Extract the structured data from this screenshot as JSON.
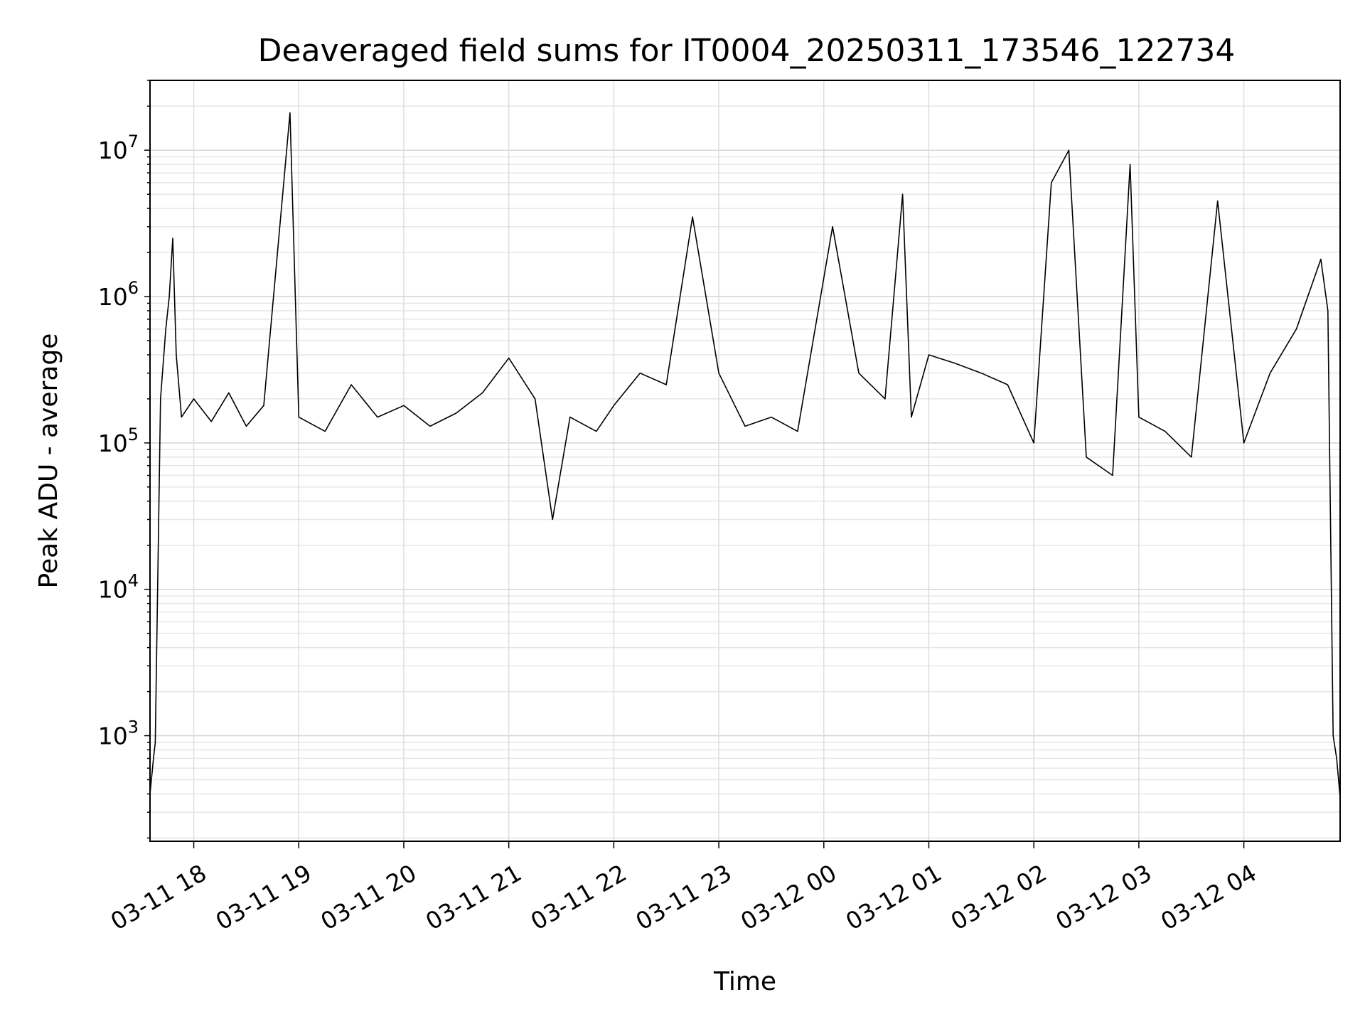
{
  "chart_data": {
    "type": "line",
    "title": "Deaveraged field sums for IT0004_20250311_173546_122734",
    "xlabel": "Time",
    "ylabel": "Peak ADU - average",
    "yscale": "log",
    "ylim": [
      190,
      30000000
    ],
    "y_ticks": [
      {
        "value": 1000,
        "base": "10",
        "exp": "3"
      },
      {
        "value": 10000,
        "base": "10",
        "exp": "4"
      },
      {
        "value": 100000,
        "base": "10",
        "exp": "5"
      },
      {
        "value": 1000000,
        "base": "10",
        "exp": "6"
      },
      {
        "value": 10000000,
        "base": "10",
        "exp": "7"
      }
    ],
    "xlim": [
      "2025-03-11 17:35",
      "2025-03-12 04:55"
    ],
    "x_ticks": [
      {
        "time": "2025-03-11 18:00",
        "label": "03-11 18"
      },
      {
        "time": "2025-03-11 19:00",
        "label": "03-11 19"
      },
      {
        "time": "2025-03-11 20:00",
        "label": "03-11 20"
      },
      {
        "time": "2025-03-11 21:00",
        "label": "03-11 21"
      },
      {
        "time": "2025-03-11 22:00",
        "label": "03-11 22"
      },
      {
        "time": "2025-03-11 23:00",
        "label": "03-11 23"
      },
      {
        "time": "2025-03-12 00:00",
        "label": "03-12 00"
      },
      {
        "time": "2025-03-12 01:00",
        "label": "03-12 01"
      },
      {
        "time": "2025-03-12 02:00",
        "label": "03-12 02"
      },
      {
        "time": "2025-03-12 03:00",
        "label": "03-12 03"
      },
      {
        "time": "2025-03-12 04:00",
        "label": "03-12 04"
      }
    ],
    "grid": true,
    "series": [
      {
        "color": "#000000",
        "points": [
          [
            "2025-03-11 17:35",
            400
          ],
          [
            "2025-03-11 17:37",
            700
          ],
          [
            "2025-03-11 17:38",
            900
          ],
          [
            "2025-03-11 17:41",
            200000
          ],
          [
            "2025-03-11 17:44",
            600000
          ],
          [
            "2025-03-11 17:46",
            1000000
          ],
          [
            "2025-03-11 17:48",
            2500000
          ],
          [
            "2025-03-11 17:50",
            400000
          ],
          [
            "2025-03-11 17:53",
            150000
          ],
          [
            "2025-03-11 18:00",
            200000
          ],
          [
            "2025-03-11 18:10",
            140000
          ],
          [
            "2025-03-11 18:20",
            220000
          ],
          [
            "2025-03-11 18:30",
            130000
          ],
          [
            "2025-03-11 18:40",
            180000
          ],
          [
            "2025-03-11 18:55",
            18000000
          ],
          [
            "2025-03-11 19:00",
            150000
          ],
          [
            "2025-03-11 19:15",
            120000
          ],
          [
            "2025-03-11 19:30",
            250000
          ],
          [
            "2025-03-11 19:45",
            150000
          ],
          [
            "2025-03-11 20:00",
            180000
          ],
          [
            "2025-03-11 20:15",
            130000
          ],
          [
            "2025-03-11 20:30",
            160000
          ],
          [
            "2025-03-11 20:45",
            220000
          ],
          [
            "2025-03-11 21:00",
            380000
          ],
          [
            "2025-03-11 21:15",
            200000
          ],
          [
            "2025-03-11 21:25",
            30000
          ],
          [
            "2025-03-11 21:35",
            150000
          ],
          [
            "2025-03-11 21:50",
            120000
          ],
          [
            "2025-03-11 22:00",
            180000
          ],
          [
            "2025-03-11 22:15",
            300000
          ],
          [
            "2025-03-11 22:30",
            250000
          ],
          [
            "2025-03-11 22:45",
            3500000
          ],
          [
            "2025-03-11 23:00",
            300000
          ],
          [
            "2025-03-11 23:15",
            130000
          ],
          [
            "2025-03-11 23:30",
            150000
          ],
          [
            "2025-03-11 23:45",
            120000
          ],
          [
            "2025-03-12 00:05",
            3000000
          ],
          [
            "2025-03-12 00:20",
            300000
          ],
          [
            "2025-03-12 00:35",
            200000
          ],
          [
            "2025-03-12 00:45",
            5000000
          ],
          [
            "2025-03-12 00:50",
            150000
          ],
          [
            "2025-03-12 01:00",
            400000
          ],
          [
            "2025-03-12 01:15",
            350000
          ],
          [
            "2025-03-12 01:30",
            300000
          ],
          [
            "2025-03-12 01:45",
            250000
          ],
          [
            "2025-03-12 02:00",
            100000
          ],
          [
            "2025-03-12 02:10",
            6000000
          ],
          [
            "2025-03-12 02:20",
            10000000
          ],
          [
            "2025-03-12 02:30",
            80000
          ],
          [
            "2025-03-12 02:45",
            60000
          ],
          [
            "2025-03-12 02:55",
            8000000
          ],
          [
            "2025-03-12 03:00",
            150000
          ],
          [
            "2025-03-12 03:15",
            120000
          ],
          [
            "2025-03-12 03:30",
            80000
          ],
          [
            "2025-03-12 03:45",
            4500000
          ],
          [
            "2025-03-12 04:00",
            100000
          ],
          [
            "2025-03-12 04:15",
            300000
          ],
          [
            "2025-03-12 04:30",
            600000
          ],
          [
            "2025-03-12 04:44",
            1800000
          ],
          [
            "2025-03-12 04:48",
            800000
          ],
          [
            "2025-03-12 04:51",
            1000
          ],
          [
            "2025-03-12 04:53",
            700
          ],
          [
            "2025-03-12 04:55",
            380
          ]
        ]
      }
    ]
  }
}
